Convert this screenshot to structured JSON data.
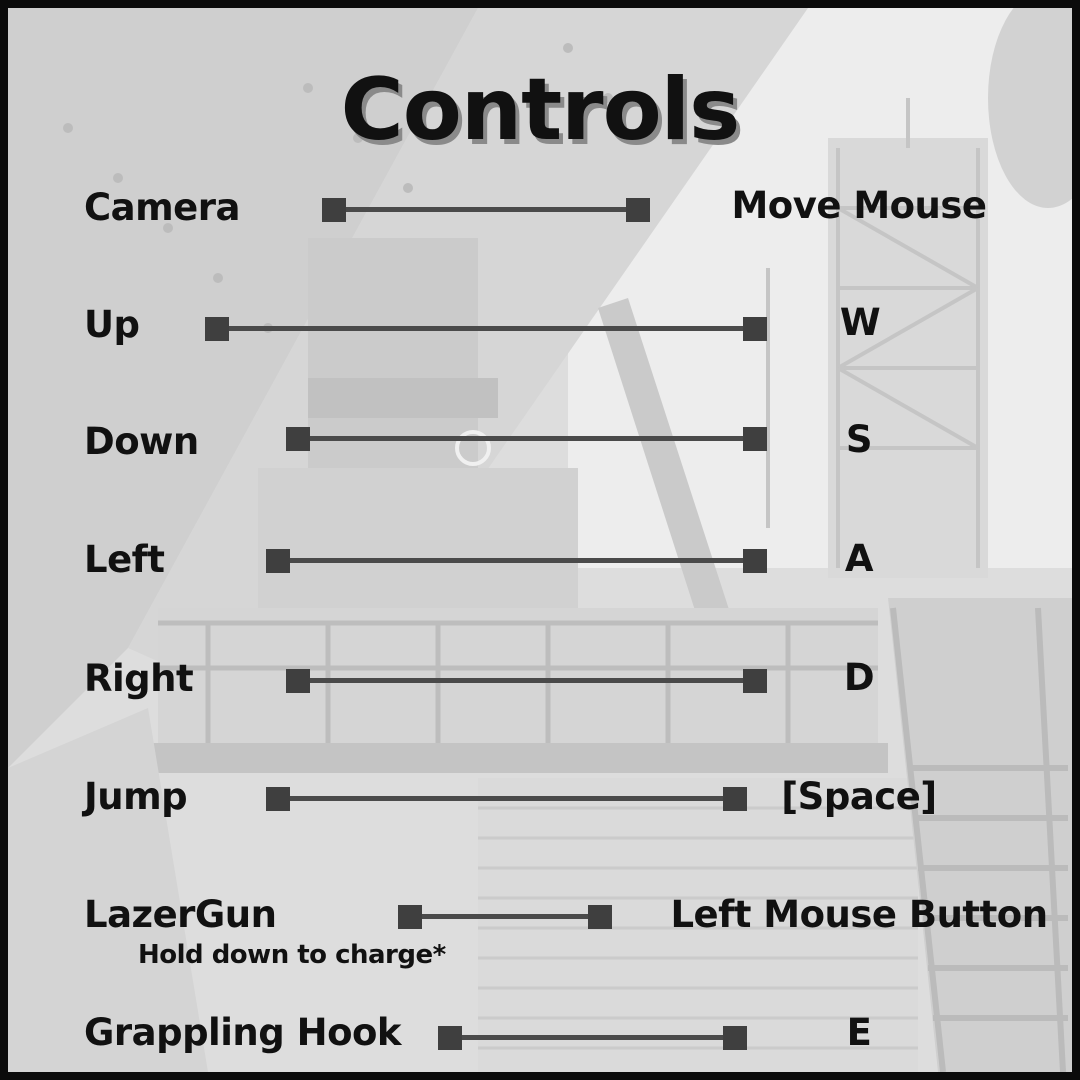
{
  "title": "Controls",
  "controls": [
    {
      "action": "Camera",
      "key": "Move Mouse"
    },
    {
      "action": "Up",
      "key": "W"
    },
    {
      "action": "Down",
      "key": "S"
    },
    {
      "action": "Left",
      "key": "A"
    },
    {
      "action": "Right",
      "key": "D"
    },
    {
      "action": "Jump",
      "key": "[Space]"
    },
    {
      "action": "LazerGun",
      "key": "Left Mouse Button",
      "note": "Hold down to charge*"
    },
    {
      "action": "Grappling Hook",
      "key": "E"
    }
  ],
  "colors": {
    "background": "#d6d6d6",
    "text": "#111111",
    "connector": "#4a4a4a",
    "border": "#0b0b0b"
  },
  "background_image": "industrial-steel-plant-photo"
}
